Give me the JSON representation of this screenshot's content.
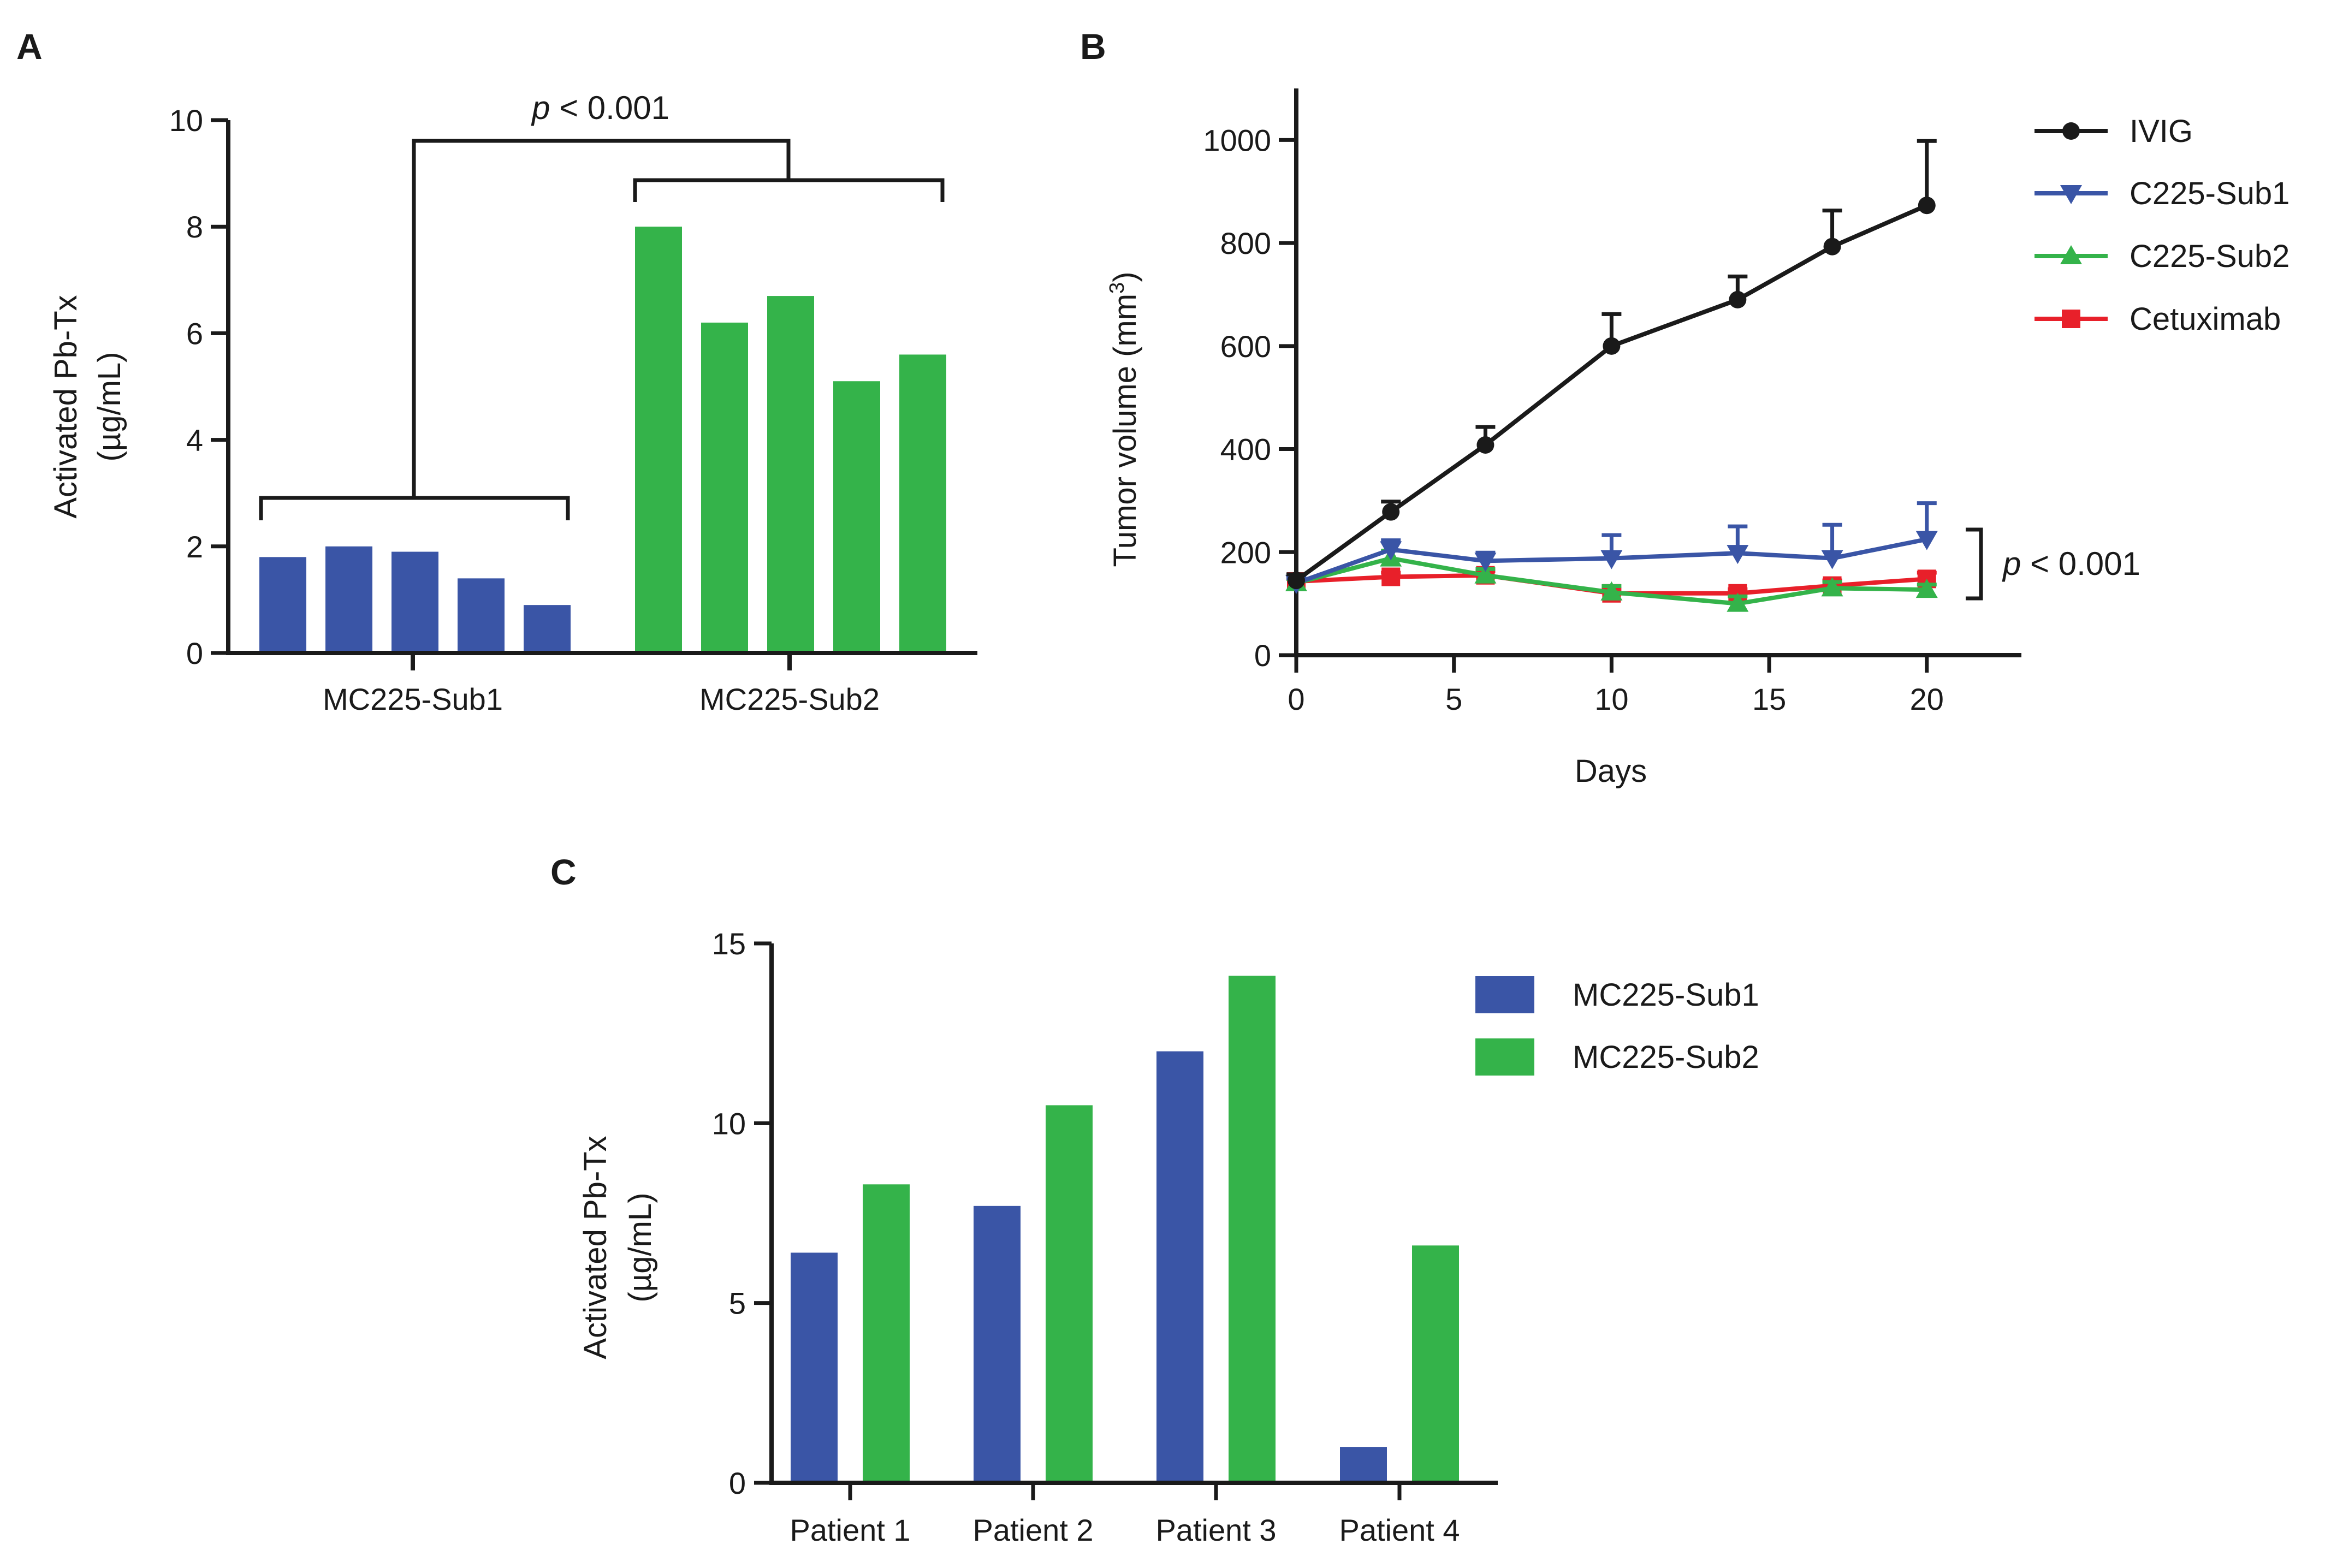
{
  "colors": {
    "blue": "#3a55a6",
    "green": "#34b34a",
    "black": "#1a1a1a",
    "red": "#e8202a"
  },
  "chart_data": [
    {
      "panel": "A",
      "type": "bar",
      "ylabel_line1": "Activated Pb-Tx",
      "ylabel_line2": "(µg/mL)",
      "ylim": [
        0,
        10
      ],
      "yticks": [
        "0",
        "2",
        "4",
        "6",
        "8",
        "10"
      ],
      "groups": [
        {
          "name": "MC225-Sub1",
          "color_key": "blue",
          "values": [
            1.8,
            2.0,
            1.9,
            1.4,
            0.9
          ]
        },
        {
          "name": "MC225-Sub2",
          "color_key": "green",
          "values": [
            8.0,
            6.2,
            6.7,
            5.1,
            5.6
          ]
        }
      ],
      "annotation_p": "p",
      "annotation_rest": " < 0.001"
    },
    {
      "panel": "B",
      "type": "line",
      "xlabel": "Days",
      "ylabel_main": "Tumor volume (mm",
      "ylabel_sup": "3",
      "ylabel_close": ")",
      "xlim": [
        0,
        23
      ],
      "ylim": [
        0,
        1100
      ],
      "xticks": [
        "0",
        "5",
        "10",
        "15",
        "20"
      ],
      "yticks": [
        "0",
        "200",
        "400",
        "600",
        "800",
        "1000"
      ],
      "x": [
        0,
        3,
        6,
        10,
        14,
        17,
        20
      ],
      "series": [
        {
          "name": "IVIG",
          "color_key": "black",
          "marker": "circle",
          "values": [
            145,
            278,
            408,
            600,
            690,
            793,
            873
          ],
          "errors": [
            12,
            20,
            35,
            62,
            45,
            70,
            125
          ]
        },
        {
          "name": "C225-Sub1",
          "color_key": "blue",
          "marker": "triangle-down",
          "values": [
            140,
            205,
            183,
            188,
            198,
            188,
            225
          ],
          "errors": [
            10,
            18,
            16,
            45,
            52,
            65,
            70
          ]
        },
        {
          "name": "C225-Sub2",
          "color_key": "green",
          "marker": "triangle-up",
          "values": [
            140,
            188,
            155,
            122,
            100,
            130,
            127
          ],
          "errors": [
            8,
            15,
            12,
            12,
            14,
            12,
            10
          ]
        },
        {
          "name": "Cetuximab",
          "color_key": "red",
          "marker": "square",
          "values": [
            143,
            152,
            155,
            120,
            120,
            135,
            148
          ],
          "errors": [
            6,
            8,
            8,
            8,
            8,
            10,
            12
          ]
        }
      ],
      "annotation_p": "p",
      "annotation_rest": " < 0.001"
    },
    {
      "panel": "C",
      "type": "bar",
      "ylabel_line1": "Activated Pb-Tx",
      "ylabel_line2": "(µg/mL)",
      "ylim": [
        0,
        15
      ],
      "yticks": [
        "0",
        "5",
        "10",
        "15"
      ],
      "categories": [
        "Patient 1",
        "Patient 2",
        "Patient 3",
        "Patient 4"
      ],
      "series": [
        {
          "name": "MC225-Sub1",
          "color_key": "blue",
          "values": [
            6.4,
            7.7,
            12.0,
            1.0
          ]
        },
        {
          "name": "MC225-Sub2",
          "color_key": "green",
          "values": [
            8.3,
            10.5,
            14.1,
            6.6
          ]
        }
      ]
    }
  ]
}
